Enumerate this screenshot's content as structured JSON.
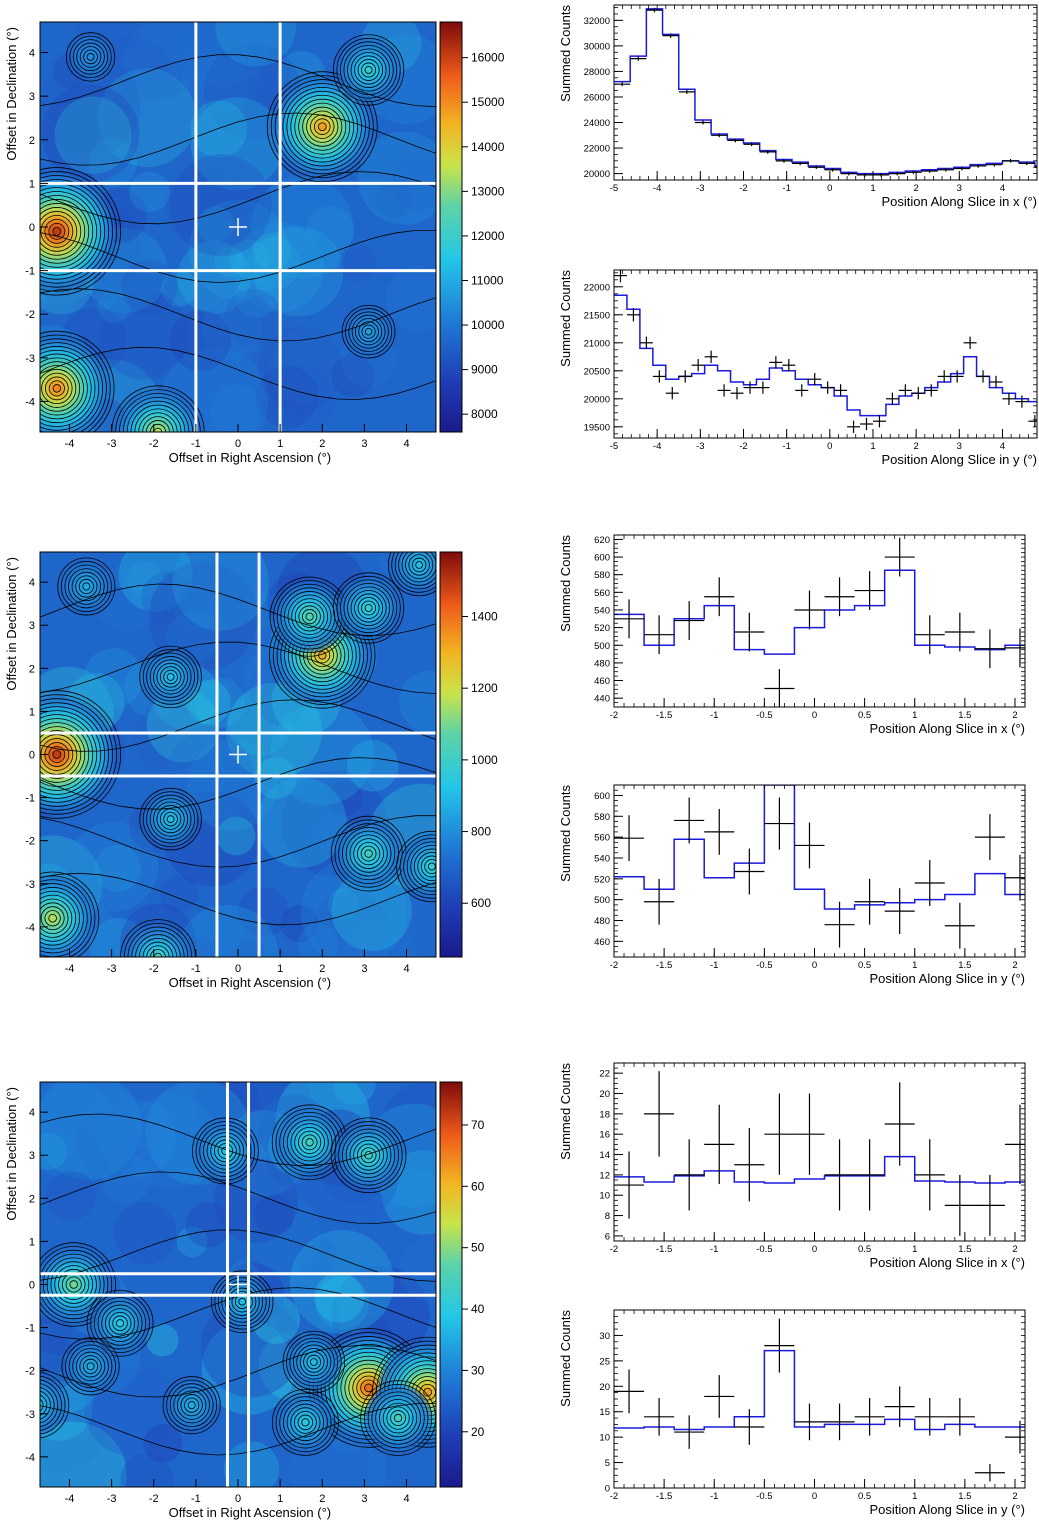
{
  "chart_data": [
    {
      "type": "heatmap",
      "xlabel": "Offset in Right Ascension (°)",
      "ylabel": "Offset in Declination (°)",
      "xlim": [
        -4.7,
        4.7
      ],
      "ylim": [
        -4.7,
        4.7
      ],
      "xticks": [
        "-4",
        "-3",
        "-2",
        "-1",
        "0",
        "1",
        "2",
        "3",
        "4"
      ],
      "yticks": [
        "-4",
        "-3",
        "-2",
        "-1",
        "0",
        "1",
        "2",
        "3",
        "4"
      ],
      "colorbar": {
        "min": 7600,
        "max": 16800,
        "ticks": [
          "8000",
          "9000",
          "10000",
          "11000",
          "12000",
          "13000",
          "14000",
          "15000",
          "16000"
        ]
      },
      "center_marker": [
        0,
        0
      ],
      "slice_half_width": 1,
      "sources": [
        {
          "x": -4.3,
          "y": -0.1,
          "amp": 1.0
        },
        {
          "x": -4.3,
          "y": -3.7,
          "amp": 0.85
        },
        {
          "x": -1.9,
          "y": -4.7,
          "amp": 0.6
        },
        {
          "x": 2.0,
          "y": 2.3,
          "amp": 0.8
        },
        {
          "x": 3.1,
          "y": 3.6,
          "amp": 0.35
        },
        {
          "x": 3.1,
          "y": -2.4,
          "amp": 0.15
        },
        {
          "x": -3.5,
          "y": 3.9,
          "amp": 0.1
        }
      ]
    },
    {
      "type": "line",
      "xlabel": "Position Along Slice in x (°)",
      "ylabel": "Summed Counts",
      "xlim": [
        -5,
        4.8
      ],
      "ylim": [
        19500,
        33200
      ],
      "xticks": [
        -5,
        -4,
        -3,
        -2,
        -1,
        0,
        1,
        2,
        3,
        4
      ],
      "yticks": [
        20000,
        22000,
        24000,
        26000,
        28000,
        30000,
        32000
      ],
      "bin_width": 0.375,
      "data": [
        27000,
        29000,
        32800,
        30800,
        26400,
        24000,
        23000,
        22600,
        22300,
        21700,
        21000,
        20800,
        20500,
        20300,
        20000,
        19900,
        19900,
        20000,
        20100,
        20200,
        20300,
        20400,
        20600,
        20700,
        21000,
        20800,
        20500,
        20400,
        20300,
        20300,
        20500,
        20500
      ],
      "model": [
        27200,
        29200,
        32900,
        30900,
        26600,
        24200,
        23100,
        22700,
        22400,
        21800,
        21100,
        20900,
        20600,
        20400,
        20100,
        20000,
        20000,
        20100,
        20200,
        20300,
        20400,
        20500,
        20700,
        20800,
        21000,
        20900,
        20600,
        20500,
        20400,
        20400,
        20500,
        20500
      ],
      "errors": [
        160,
        170,
        180,
        170,
        160,
        150,
        150,
        150,
        150,
        150,
        140,
        140,
        140,
        140,
        140,
        140,
        140,
        140,
        140,
        140,
        140,
        140,
        140,
        140,
        140,
        140,
        140,
        140,
        140,
        140,
        140,
        140
      ]
    },
    {
      "type": "line",
      "xlabel": "Position Along Slice in y (°)",
      "ylabel": "Summed Counts",
      "xlim": [
        -5,
        4.8
      ],
      "ylim": [
        19300,
        22300
      ],
      "xticks": [
        -5,
        -4,
        -3,
        -2,
        -1,
        0,
        1,
        2,
        3,
        4
      ],
      "yticks": [
        19500,
        20000,
        20500,
        21000,
        21500,
        22000
      ],
      "bin_width": 0.3,
      "data": [
        22200,
        21500,
        21000,
        20400,
        20100,
        20400,
        20600,
        20750,
        20150,
        20100,
        20200,
        20200,
        20650,
        20600,
        20150,
        20350,
        20200,
        20150,
        19500,
        19550,
        19600,
        20000,
        20150,
        20100,
        20150,
        20400,
        20400,
        21000,
        20400,
        20300,
        20000,
        19950,
        19600
      ],
      "model": [
        21850,
        21600,
        20900,
        20600,
        20350,
        20400,
        20450,
        20600,
        20500,
        20300,
        20250,
        20350,
        20550,
        20500,
        20350,
        20250,
        20200,
        20050,
        19800,
        19700,
        19700,
        19900,
        20050,
        20100,
        20200,
        20300,
        20450,
        20750,
        20400,
        20200,
        20100,
        20000,
        19950
      ],
      "errors": [
        120,
        120,
        110,
        110,
        110,
        110,
        110,
        110,
        110,
        110,
        110,
        110,
        110,
        110,
        110,
        110,
        110,
        110,
        110,
        110,
        110,
        110,
        110,
        110,
        110,
        110,
        110,
        110,
        110,
        110,
        110,
        110,
        110
      ]
    },
    {
      "type": "heatmap",
      "xlabel": "Offset in Right Ascension (°)",
      "ylabel": "Offset in Declination (°)",
      "xlim": [
        -4.7,
        4.7
      ],
      "ylim": [
        -4.7,
        4.7
      ],
      "xticks": [
        "-4",
        "-3",
        "-2",
        "-1",
        "0",
        "1",
        "2",
        "3",
        "4"
      ],
      "yticks": [
        "-4",
        "-3",
        "-2",
        "-1",
        "0",
        "1",
        "2",
        "3",
        "4"
      ],
      "colorbar": {
        "min": 450,
        "max": 1580,
        "ticks": [
          "600",
          "800",
          "1000",
          "1200",
          "1400"
        ]
      },
      "center_marker": [
        0,
        0
      ],
      "slice_half_width": 0.5,
      "sources": [
        {
          "x": -4.3,
          "y": 0.0,
          "amp": 1.0
        },
        {
          "x": -4.4,
          "y": -3.8,
          "amp": 0.6
        },
        {
          "x": -1.9,
          "y": -4.7,
          "amp": 0.4
        },
        {
          "x": 2.0,
          "y": 2.3,
          "amp": 0.75
        },
        {
          "x": 1.7,
          "y": 3.2,
          "amp": 0.45
        },
        {
          "x": 3.1,
          "y": 3.4,
          "amp": 0.35
        },
        {
          "x": 3.1,
          "y": -2.3,
          "amp": 0.4
        },
        {
          "x": 4.6,
          "y": -2.6,
          "amp": 0.35
        },
        {
          "x": -1.6,
          "y": 1.8,
          "amp": 0.25
        },
        {
          "x": -1.6,
          "y": -1.5,
          "amp": 0.25
        },
        {
          "x": -3.6,
          "y": 3.9,
          "amp": 0.2
        },
        {
          "x": 4.3,
          "y": 4.4,
          "amp": 0.25
        }
      ]
    },
    {
      "type": "line",
      "xlabel": "Position Along Slice in x (°)",
      "ylabel": "Summed Counts",
      "xlim": [
        -2,
        2.1
      ],
      "ylim": [
        430,
        625
      ],
      "xticks": [
        -2,
        -1.5,
        -1,
        -0.5,
        0,
        0.5,
        1,
        1.5,
        2
      ],
      "yticks": [
        440,
        460,
        480,
        500,
        520,
        540,
        560,
        580,
        600,
        620
      ],
      "bin_width": 0.3,
      "data": [
        530,
        512,
        528,
        555,
        515,
        451,
        540,
        555,
        562,
        600,
        512,
        515,
        496,
        497
      ],
      "model": [
        535,
        500,
        530,
        545,
        495,
        490,
        520,
        540,
        545,
        585,
        500,
        498,
        495,
        500
      ],
      "errors": [
        22,
        22,
        22,
        22,
        22,
        22,
        22,
        22,
        22,
        22,
        22,
        22,
        22,
        22
      ]
    },
    {
      "type": "line",
      "xlabel": "Position Along Slice in y (°)",
      "ylabel": "Summed Counts",
      "xlim": [
        -2,
        2.1
      ],
      "ylim": [
        445,
        610
      ],
      "xticks": [
        -2,
        -1.5,
        -1,
        -0.5,
        0,
        0.5,
        1,
        1.5,
        2
      ],
      "yticks": [
        460,
        480,
        500,
        520,
        540,
        560,
        580,
        600
      ],
      "bin_width": 0.3,
      "data": [
        559,
        498,
        576,
        565,
        527,
        573,
        552,
        476,
        498,
        489,
        516,
        475,
        560,
        521
      ],
      "model": [
        522,
        510,
        558,
        521,
        535,
        610,
        510,
        491,
        495,
        497,
        500,
        505,
        525,
        505
      ],
      "errors": [
        22,
        22,
        22,
        22,
        22,
        25,
        22,
        22,
        22,
        22,
        22,
        22,
        22,
        22
      ]
    },
    {
      "type": "heatmap",
      "xlabel": "Offset in Right Ascension (°)",
      "ylabel": "Offset in Declination (°)",
      "xlim": [
        -4.7,
        4.7
      ],
      "ylim": [
        -4.7,
        4.7
      ],
      "xticks": [
        "-4",
        "-3",
        "-2",
        "-1",
        "0",
        "1",
        "2",
        "3",
        "4"
      ],
      "yticks": [
        "-4",
        "-3",
        "-2",
        "-1",
        "0",
        "1",
        "2",
        "3",
        "4"
      ],
      "colorbar": {
        "min": 11,
        "max": 77,
        "ticks": [
          "20",
          "30",
          "40",
          "50",
          "60",
          "70"
        ]
      },
      "center_marker": [
        0,
        0
      ],
      "slice_half_width": 0.25,
      "sources": [
        {
          "x": -3.9,
          "y": 0.0,
          "amp": 0.5
        },
        {
          "x": 3.1,
          "y": -2.4,
          "amp": 0.9
        },
        {
          "x": 4.5,
          "y": -2.5,
          "amp": 0.8
        },
        {
          "x": 1.7,
          "y": 3.3,
          "amp": 0.4
        },
        {
          "x": 3.1,
          "y": 3.0,
          "amp": 0.4
        },
        {
          "x": -0.3,
          "y": 3.1,
          "amp": 0.3
        },
        {
          "x": 3.8,
          "y": -3.1,
          "amp": 0.4
        },
        {
          "x": 1.6,
          "y": -3.2,
          "amp": 0.3
        },
        {
          "x": -2.8,
          "y": -0.9,
          "amp": 0.3
        },
        {
          "x": 0.1,
          "y": -0.4,
          "amp": 0.25
        },
        {
          "x": -1.1,
          "y": -2.8,
          "amp": 0.2
        },
        {
          "x": 1.8,
          "y": -1.8,
          "amp": 0.25
        },
        {
          "x": -3.5,
          "y": -1.9,
          "amp": 0.2
        },
        {
          "x": -4.8,
          "y": -2.8,
          "amp": 0.3
        }
      ]
    },
    {
      "type": "line",
      "xlabel": "Position Along Slice in x (°)",
      "ylabel": "Summed Counts",
      "xlim": [
        -2,
        2.1
      ],
      "ylim": [
        5.5,
        23
      ],
      "xticks": [
        -2,
        -1.5,
        -1,
        -0.5,
        0,
        0.5,
        1,
        1.5,
        2
      ],
      "yticks": [
        6,
        8,
        10,
        12,
        14,
        16,
        18,
        20,
        22
      ],
      "bin_width": 0.3,
      "data": [
        11,
        18,
        12,
        15,
        13,
        16,
        16,
        12,
        12,
        17,
        12,
        9,
        9,
        15
      ],
      "model": [
        11.8,
        11.3,
        11.9,
        12.4,
        11.3,
        11.2,
        11.6,
        11.9,
        11.9,
        13.8,
        11.4,
        11.3,
        11.2,
        11.3
      ],
      "errors": [
        3.3,
        4.2,
        3.5,
        3.9,
        3.6,
        4,
        4,
        3.5,
        3.5,
        4.1,
        3.5,
        3,
        3,
        3.9
      ]
    },
    {
      "type": "line",
      "xlabel": "Position Along Slice in y (°)",
      "ylabel": "Summed Counts",
      "xlim": [
        -2,
        2.1
      ],
      "ylim": [
        0,
        35
      ],
      "xticks": [
        -2,
        -1.5,
        -1,
        -0.5,
        0,
        0.5,
        1,
        1.5,
        2
      ],
      "yticks": [
        0,
        5,
        10,
        15,
        20,
        25,
        30
      ],
      "bin_width": 0.3,
      "data": [
        19,
        14,
        11,
        18,
        12,
        28,
        13,
        13,
        14,
        16,
        14,
        14,
        3,
        10
      ],
      "model": [
        11.8,
        12,
        11.5,
        12,
        14,
        27,
        12,
        12.5,
        12.5,
        13.5,
        11.5,
        12.5,
        12,
        12
      ],
      "errors": [
        4.3,
        3.7,
        3.3,
        4.2,
        3.5,
        5.3,
        3.6,
        3.6,
        3.7,
        4,
        3.7,
        3.7,
        1.7,
        3.2
      ]
    }
  ]
}
